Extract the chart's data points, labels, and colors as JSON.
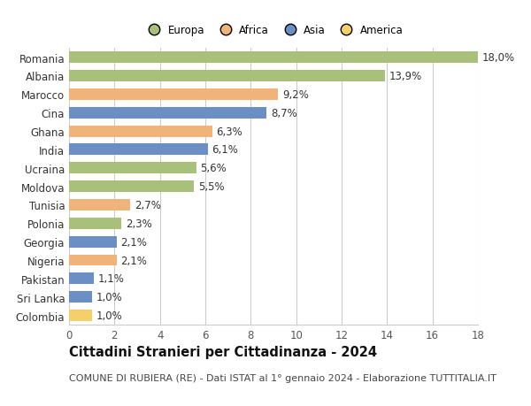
{
  "countries": [
    "Romania",
    "Albania",
    "Marocco",
    "Cina",
    "Ghana",
    "India",
    "Ucraina",
    "Moldova",
    "Tunisia",
    "Polonia",
    "Georgia",
    "Nigeria",
    "Pakistan",
    "Sri Lanka",
    "Colombia"
  ],
  "values": [
    18.0,
    13.9,
    9.2,
    8.7,
    6.3,
    6.1,
    5.6,
    5.5,
    2.7,
    2.3,
    2.1,
    2.1,
    1.1,
    1.0,
    1.0
  ],
  "labels": [
    "18,0%",
    "13,9%",
    "9,2%",
    "8,7%",
    "6,3%",
    "6,1%",
    "5,6%",
    "5,5%",
    "2,7%",
    "2,3%",
    "2,1%",
    "2,1%",
    "1,1%",
    "1,0%",
    "1,0%"
  ],
  "continents": [
    "Europa",
    "Europa",
    "Africa",
    "Asia",
    "Africa",
    "Asia",
    "Europa",
    "Europa",
    "Africa",
    "Europa",
    "Asia",
    "Africa",
    "Asia",
    "Asia",
    "America"
  ],
  "colors": {
    "Europa": "#a8c07a",
    "Africa": "#f0b47a",
    "Asia": "#6b8fc4",
    "America": "#f5d06a"
  },
  "legend_order": [
    "Europa",
    "Africa",
    "Asia",
    "America"
  ],
  "title": "Cittadini Stranieri per Cittadinanza - 2024",
  "subtitle": "COMUNE DI RUBIERA (RE) - Dati ISTAT al 1° gennaio 2024 - Elaborazione TUTTITALIA.IT",
  "xlim": [
    0,
    18
  ],
  "xticks": [
    0,
    2,
    4,
    6,
    8,
    10,
    12,
    14,
    16,
    18
  ],
  "background_color": "#ffffff",
  "grid_color": "#cccccc",
  "bar_height": 0.62,
  "label_fontsize": 8.5,
  "tick_fontsize": 8.5,
  "title_fontsize": 10.5,
  "subtitle_fontsize": 8
}
